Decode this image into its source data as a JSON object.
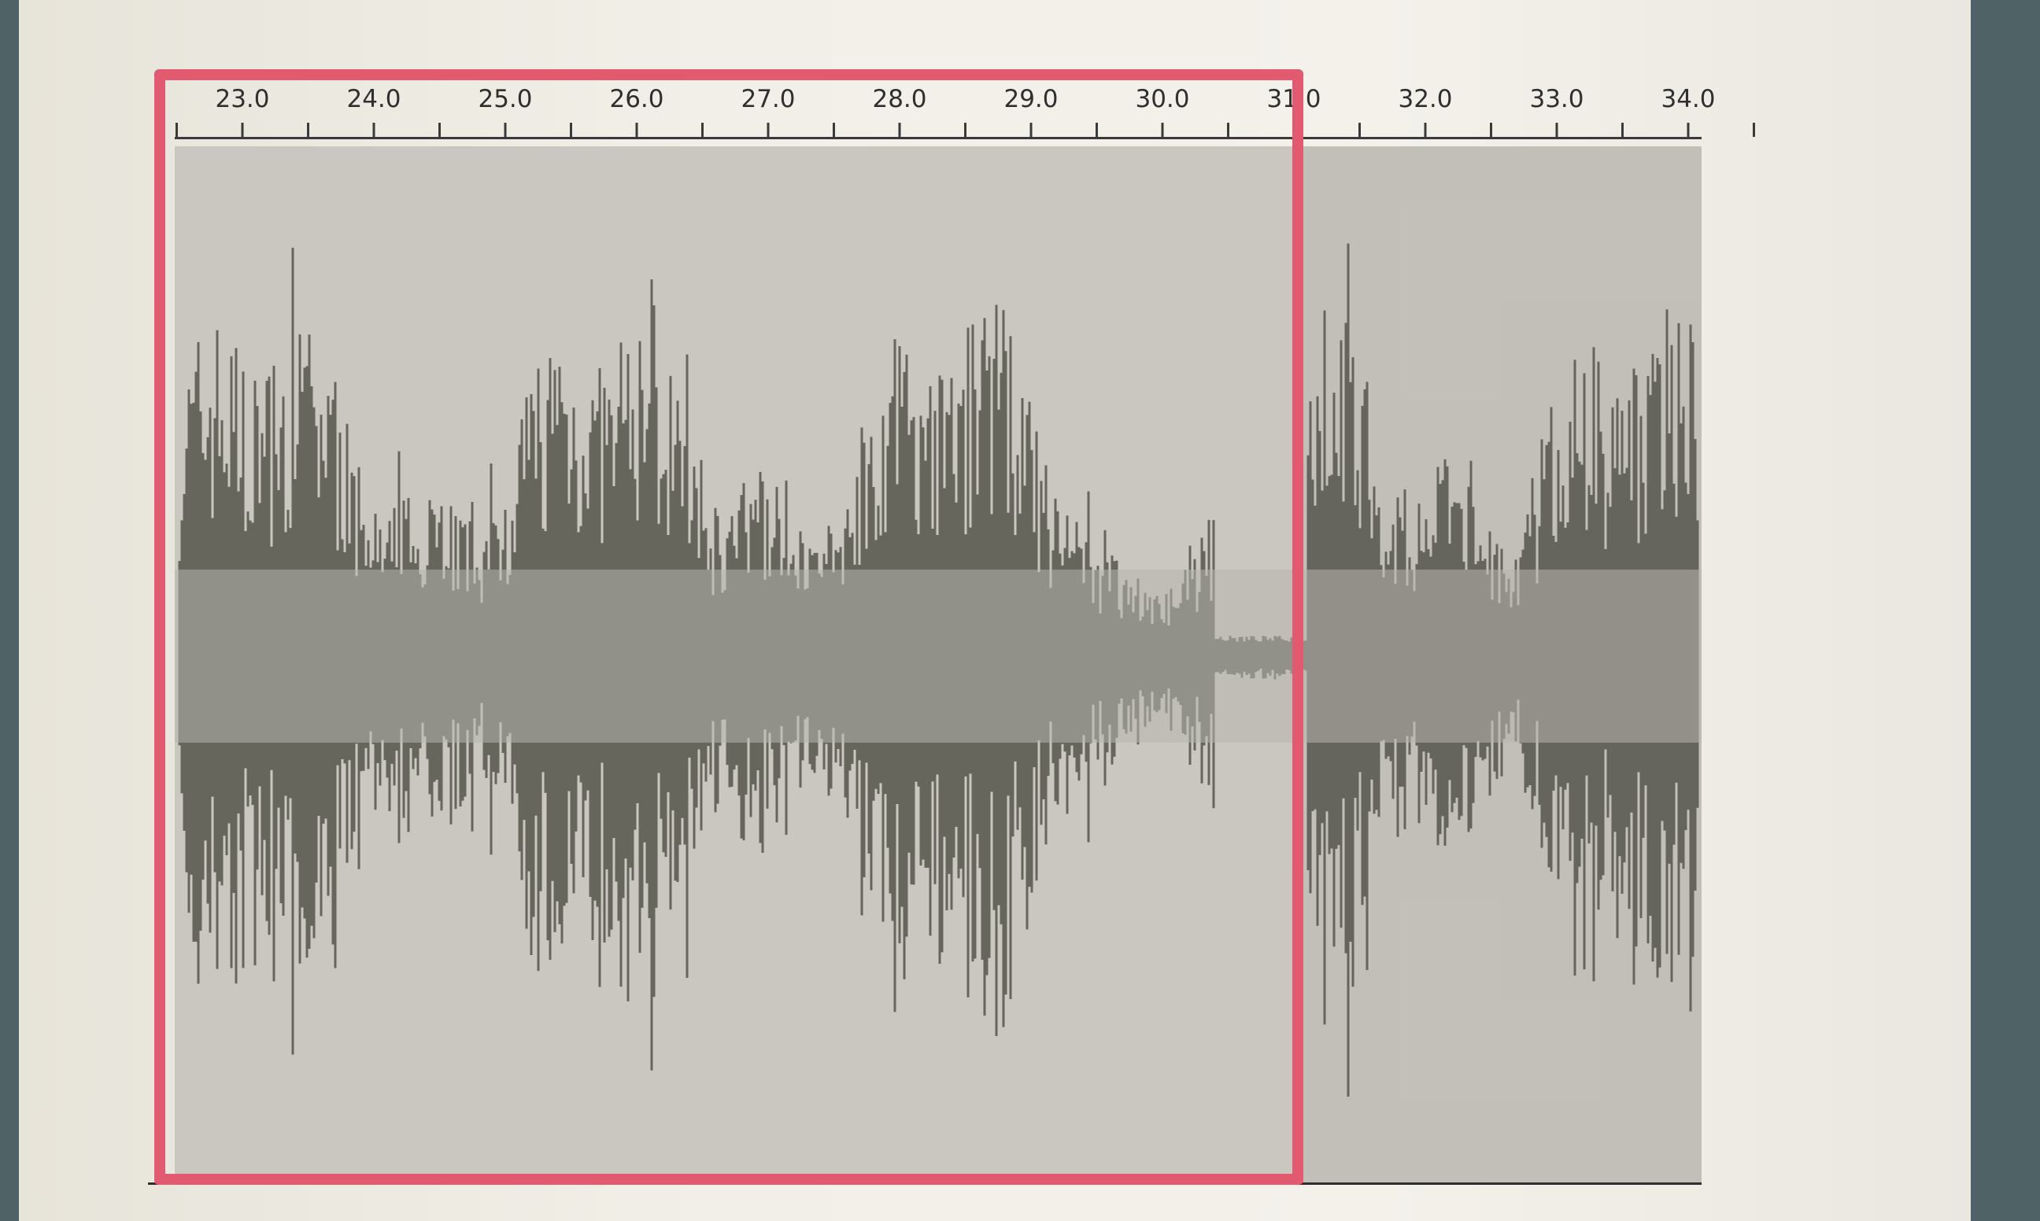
{
  "timeline": {
    "ticks": [
      "23.0",
      "24.0",
      "25.0",
      "26.0",
      "27.0",
      "28.0",
      "29.0",
      "30.0",
      "31.0",
      "32.0",
      "33.0",
      "34.0"
    ]
  },
  "colors": {
    "background": "#4f6266",
    "paper": "#f1efe7",
    "track": "#c9c7c0",
    "waveform": "#5e5d55",
    "selection_marker": "#e25a6f"
  },
  "waveform": {
    "silent_section_seconds": [
      30.4,
      31.1
    ]
  }
}
